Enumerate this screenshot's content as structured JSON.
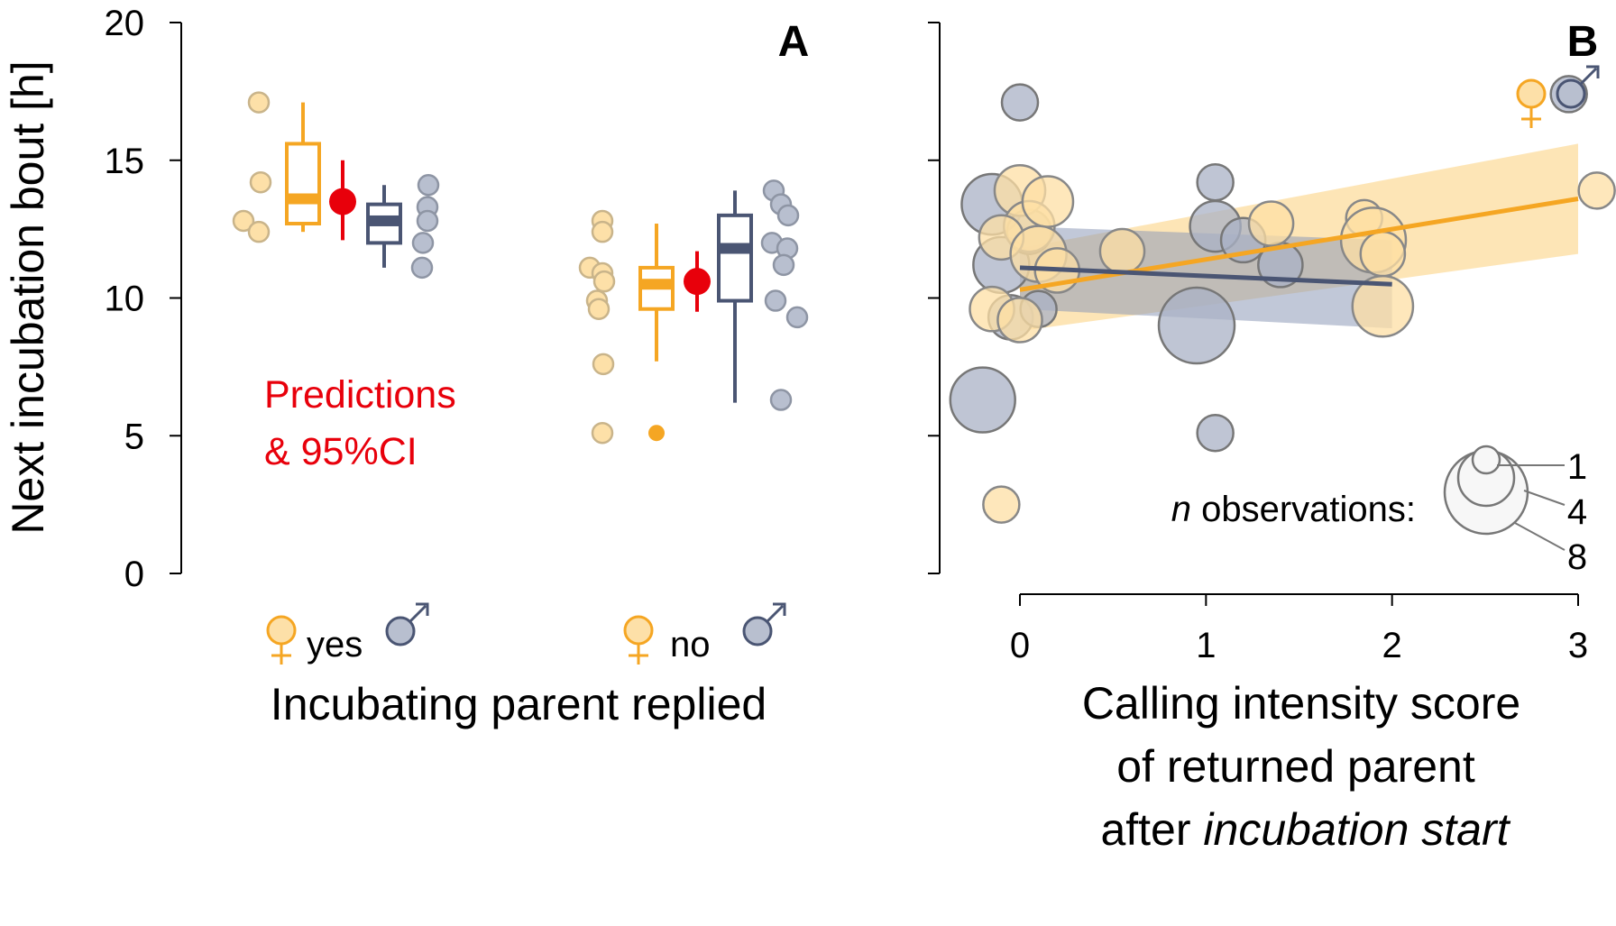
{
  "chart_data": [
    {
      "panel": "A",
      "type": "box",
      "ylabel": "Next incubation bout [h]",
      "xlabel": "Incubating parent replied",
      "ylim": [
        0,
        20
      ],
      "yticks": [
        0,
        5,
        10,
        15,
        20
      ],
      "categories": [
        "yes",
        "no"
      ],
      "colors": {
        "female": "#f5a623",
        "male": "#4a5573",
        "prediction": "#e8000b",
        "female_fill": "#fde0a8",
        "male_fill": "#b8bfcf"
      },
      "annotation": [
        "Predictions",
        "& 95%CI"
      ],
      "groups": [
        {
          "category": "yes",
          "female_points": [
            17.1,
            14.2,
            12.8,
            12.4
          ],
          "female_box": {
            "min": 12.4,
            "q1": 12.7,
            "median": 13.6,
            "q3": 15.6,
            "max": 17.1
          },
          "prediction": {
            "estimate": 13.5,
            "lower": 12.1,
            "upper": 15.0
          },
          "male_box": {
            "min": 11.1,
            "q1": 12.0,
            "median": 12.8,
            "q3": 13.4,
            "max": 14.1
          },
          "male_points": [
            14.1,
            13.3,
            12.8,
            12.0,
            11.1
          ]
        },
        {
          "category": "no",
          "female_points": [
            12.8,
            12.4,
            11.1,
            10.9,
            10.6,
            9.9,
            9.6,
            7.6,
            5.1
          ],
          "female_box": {
            "min": 7.7,
            "q1": 9.6,
            "median": 10.5,
            "q3": 11.1,
            "max": 12.7
          },
          "female_outliers": [
            5.1
          ],
          "prediction": {
            "estimate": 10.6,
            "lower": 9.5,
            "upper": 11.7
          },
          "male_box": {
            "min": 6.2,
            "q1": 9.9,
            "median": 11.8,
            "q3": 13.0,
            "max": 13.9
          },
          "male_points": [
            13.9,
            13.4,
            13.0,
            12.0,
            11.8,
            11.2,
            9.9,
            9.3,
            6.3
          ]
        }
      ],
      "legend": {
        "female_symbol": "♀",
        "male_symbol": "♂"
      }
    },
    {
      "panel": "B",
      "type": "scatter",
      "xlabel_lines": [
        "Calling intensity score",
        "of returned parent",
        "after "
      ],
      "xlabel_italic": "incubation start",
      "xlim": [
        0,
        3
      ],
      "xticks": [
        0,
        1,
        2,
        3
      ],
      "ylim": [
        0,
        20
      ],
      "colors": {
        "female": "#f5a623",
        "male": "#4a5573",
        "female_fill": "#fde0a8",
        "male_fill": "#b8bfcf"
      },
      "female_points": [
        {
          "x": 0.0,
          "y": 13.9,
          "n": 3
        },
        {
          "x": 0.05,
          "y": 12.6,
          "n": 3
        },
        {
          "x": -0.1,
          "y": 12.2,
          "n": 2
        },
        {
          "x": 0.15,
          "y": 13.5,
          "n": 3
        },
        {
          "x": 0.1,
          "y": 11.6,
          "n": 4
        },
        {
          "x": 0.2,
          "y": 11.0,
          "n": 2
        },
        {
          "x": -0.15,
          "y": 9.6,
          "n": 2
        },
        {
          "x": 0.0,
          "y": 9.2,
          "n": 2
        },
        {
          "x": 0.55,
          "y": 11.7,
          "n": 2
        },
        {
          "x": 1.35,
          "y": 12.7,
          "n": 2
        },
        {
          "x": 1.85,
          "y": 12.9,
          "n": 1
        },
        {
          "x": 1.9,
          "y": 12.1,
          "n": 6
        },
        {
          "x": 1.95,
          "y": 11.6,
          "n": 2
        },
        {
          "x": 1.95,
          "y": 9.7,
          "n": 5
        },
        {
          "x": 3.1,
          "y": 13.9,
          "n": 1
        },
        {
          "x": -0.1,
          "y": 2.5,
          "n": 1
        }
      ],
      "male_points": [
        {
          "x": 0.0,
          "y": 17.1,
          "n": 1
        },
        {
          "x": -0.15,
          "y": 13.4,
          "n": 5
        },
        {
          "x": -0.1,
          "y": 11.2,
          "n": 4
        },
        {
          "x": -0.05,
          "y": 9.3,
          "n": 2
        },
        {
          "x": 0.1,
          "y": 9.6,
          "n": 1
        },
        {
          "x": 0.05,
          "y": 12.4,
          "n": 2
        },
        {
          "x": -0.2,
          "y": 6.3,
          "n": 6
        },
        {
          "x": 1.05,
          "y": 14.2,
          "n": 1
        },
        {
          "x": 1.05,
          "y": 12.6,
          "n": 3
        },
        {
          "x": 1.2,
          "y": 12.1,
          "n": 2
        },
        {
          "x": 1.4,
          "y": 11.2,
          "n": 2
        },
        {
          "x": 0.95,
          "y": 9.0,
          "n": 9
        },
        {
          "x": 1.05,
          "y": 5.1,
          "n": 1
        },
        {
          "x": 2.95,
          "y": 17.4,
          "n": 1
        }
      ],
      "female_fit": {
        "x": [
          0,
          3
        ],
        "y": [
          10.3,
          13.6
        ],
        "ci_lower": [
          8.8,
          11.6
        ],
        "ci_upper": [
          11.8,
          15.6
        ]
      },
      "male_fit": {
        "x": [
          0,
          2
        ],
        "y": [
          11.1,
          10.5
        ],
        "ci_lower": [
          9.6,
          8.9
        ],
        "ci_upper": [
          12.6,
          12.1
        ]
      },
      "size_legend": {
        "label_italic": "n",
        "label": " observations:",
        "values": [
          "1",
          "4",
          "8"
        ]
      },
      "legend": {
        "female_symbol": "♀",
        "male_symbol": "♂"
      }
    }
  ]
}
